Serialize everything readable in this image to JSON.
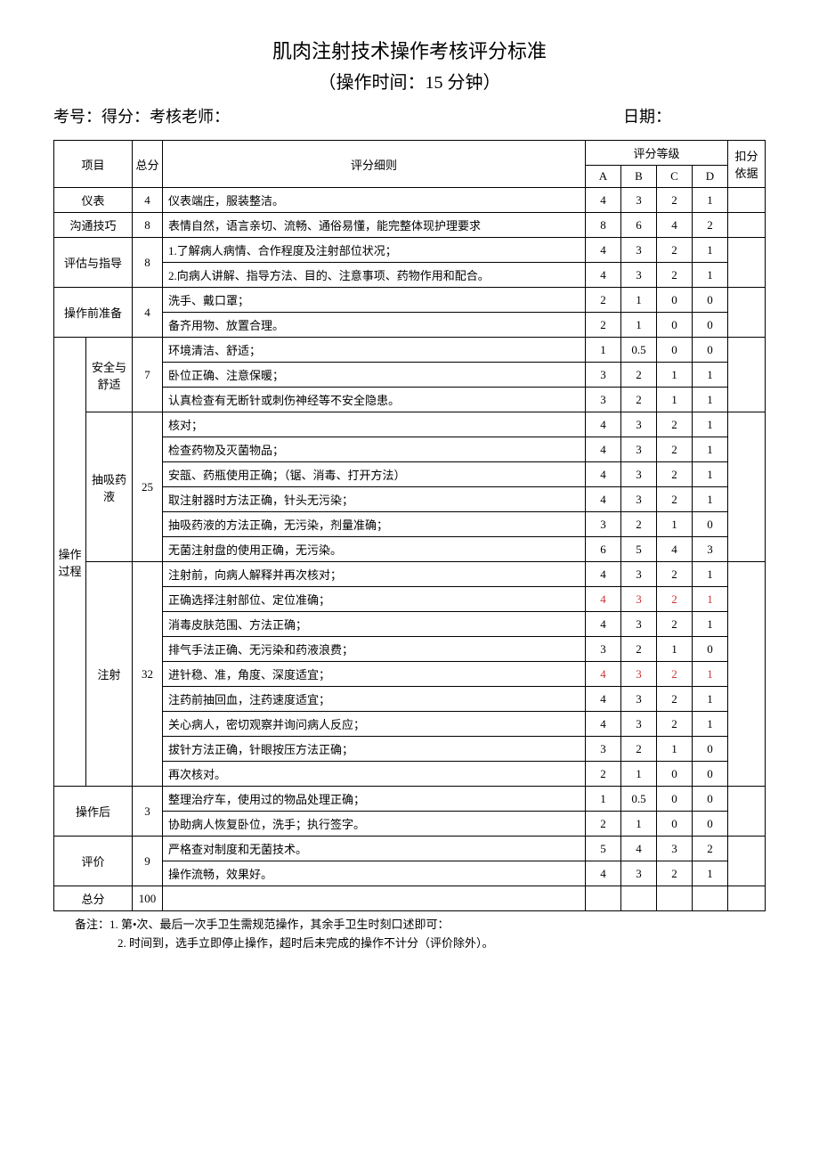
{
  "title": "肌肉注射技术操作考核评分标准",
  "subtitle": "（操作时间：15 分钟）",
  "header_left": "考号：得分：考核老师：",
  "header_right": "日期：",
  "columns": {
    "item": "项目",
    "total": "总分",
    "rule": "评分细则",
    "grade_header": "评分等级",
    "A": "A",
    "B": "B",
    "C": "C",
    "D": "D",
    "basis": "扣分依据"
  },
  "sections": [
    {
      "name": "仪表",
      "total": "4",
      "rows": [
        {
          "rule": "仪表端庄，服装整洁。",
          "g": [
            "4",
            "3",
            "2",
            "1"
          ]
        }
      ]
    },
    {
      "name": "沟通技巧",
      "total": "8",
      "rows": [
        {
          "rule": "表情自然，语言亲切、流畅、通俗易懂，能完整体现护理要求",
          "g": [
            "8",
            "6",
            "4",
            "2"
          ]
        }
      ]
    },
    {
      "name": "评估与指导",
      "total": "8",
      "rows": [
        {
          "rule": "1.了解病人病情、合作程度及注射部位状况；",
          "g": [
            "4",
            "3",
            "2",
            "1"
          ]
        },
        {
          "rule": "2.向病人讲解、指导方法、目的、注意事项、药物作用和配合。",
          "g": [
            "4",
            "3",
            "2",
            "1"
          ]
        }
      ]
    },
    {
      "name": "操作前准备",
      "total": "4",
      "rows": [
        {
          "rule": "洗手、戴口罩；",
          "g": [
            "2",
            "1",
            "0",
            "0"
          ]
        },
        {
          "rule": "备齐用物、放置合理。",
          "g": [
            "2",
            "1",
            "0",
            "0"
          ]
        }
      ]
    }
  ],
  "process": {
    "name": "操作过程",
    "subs": [
      {
        "name": "安全与舒适",
        "total": "7",
        "rows": [
          {
            "rule": "环境清洁、舒适；",
            "g": [
              "1",
              "0.5",
              "0",
              "0"
            ]
          },
          {
            "rule": "卧位正确、注意保暖；",
            "g": [
              "3",
              "2",
              "1",
              "1"
            ]
          },
          {
            "rule": "认真检查有无断针或刺伤神经等不安全隐患。",
            "g": [
              "3",
              "2",
              "1",
              "1"
            ]
          }
        ]
      },
      {
        "name": "抽吸药液",
        "total": "25",
        "rows": [
          {
            "rule": "核对；",
            "g": [
              "4",
              "3",
              "2",
              "1"
            ]
          },
          {
            "rule": "检查药物及灭菌物品；",
            "g": [
              "4",
              "3",
              "2",
              "1"
            ]
          },
          {
            "rule": "安瓿、药瓶使用正确；（锯、消毒、打开方法）",
            "g": [
              "4",
              "3",
              "2",
              "1"
            ]
          },
          {
            "rule": "取注射器时方法正确，针头无污染；",
            "g": [
              "4",
              "3",
              "2",
              "1"
            ]
          },
          {
            "rule": "抽吸药液的方法正确，无污染，剂量准确；",
            "g": [
              "3",
              "2",
              "1",
              "0"
            ]
          },
          {
            "rule": "无菌注射盘的使用正确，无污染。",
            "g": [
              "6",
              "5",
              "4",
              "3"
            ]
          }
        ]
      },
      {
        "name": "注射",
        "total": "32",
        "rows": [
          {
            "rule": "注射前，向病人解释并再次核对；",
            "g": [
              "4",
              "3",
              "2",
              "1"
            ]
          },
          {
            "rule": "正确选择注射部位、定位准确；",
            "g": [
              "4",
              "3",
              "2",
              "1"
            ],
            "red": true
          },
          {
            "rule": "消毒皮肤范围、方法正确；",
            "g": [
              "4",
              "3",
              "2",
              "1"
            ]
          },
          {
            "rule": "排气手法正确、无污染和药液浪费；",
            "g": [
              "3",
              "2",
              "1",
              "0"
            ]
          },
          {
            "rule": "进针稳、准，角度、深度适宜；",
            "g": [
              "4",
              "3",
              "2",
              "1"
            ],
            "red": true
          },
          {
            "rule": "注药前抽回血，注药速度适宜；",
            "g": [
              "4",
              "3",
              "2",
              "1"
            ]
          },
          {
            "rule": "关心病人，密切观察并询问病人反应；",
            "g": [
              "4",
              "3",
              "2",
              "1"
            ]
          },
          {
            "rule": "拔针方法正确，针眼按压方法正确；",
            "g": [
              "3",
              "2",
              "1",
              "0"
            ]
          },
          {
            "rule": "再次核对。",
            "g": [
              "2",
              "1",
              "0",
              "0"
            ]
          }
        ]
      }
    ]
  },
  "after_sections": [
    {
      "name": "操作后",
      "total": "3",
      "rows": [
        {
          "rule": "整理治疗车，使用过的物品处理正确；",
          "g": [
            "1",
            "0.5",
            "0",
            "0"
          ]
        },
        {
          "rule": "协助病人恢复卧位，洗手；执行签字。",
          "g": [
            "2",
            "1",
            "0",
            "0"
          ]
        }
      ]
    },
    {
      "name": "评价",
      "total": "9",
      "rows": [
        {
          "rule": "严格查对制度和无菌技术。",
          "g": [
            "5",
            "4",
            "3",
            "2"
          ]
        },
        {
          "rule": "操作流畅，效果好。",
          "g": [
            "4",
            "3",
            "2",
            "1"
          ]
        }
      ]
    }
  ],
  "total_row": {
    "name": "总分",
    "total": "100"
  },
  "notes": [
    "备注：1. 第•次、最后一次手卫生需规范操作，其余手卫生时刻口述即可：",
    "2. 时间到，选手立即停止操作，超时后未完成的操作不计分（评价除外）。"
  ]
}
